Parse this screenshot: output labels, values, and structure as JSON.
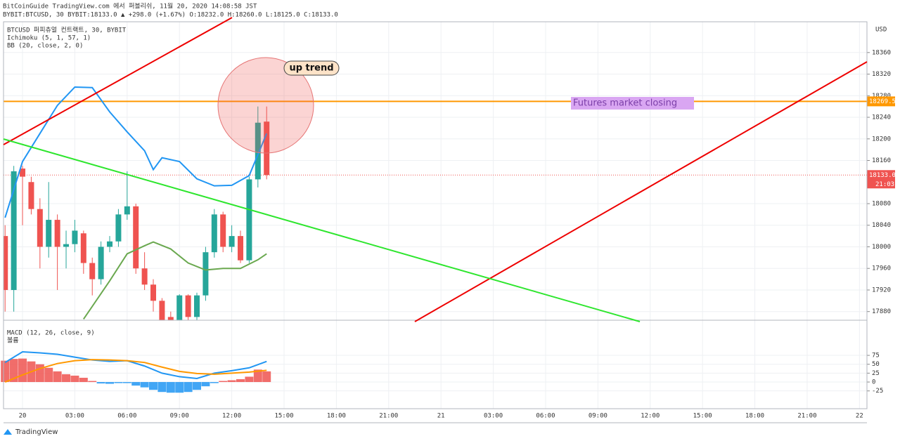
{
  "header": {
    "line1": "BitCoinGuide TradingView.com 에서 퍼블리쉬, 11월 20, 2020 14:08:58 JST",
    "line2": "BYBIT:BTCUSD, 30 BYBIT:18133.0 ▲ +298.0 (+1.67%) O:18232.0 H:18260.0 L:18125.0 C:18133.0"
  },
  "chart_data": [
    {
      "type": "candlestick",
      "legend": [
        "BTCUSD 퍼피츄얼 컨트랙트, 30, BYBIT",
        "Ichimoku (5, 1, 57, 1)",
        "BB (20, close, 2, 0)"
      ],
      "currency": "USD",
      "x": [
        -1,
        -0.5,
        0,
        0.5,
        1,
        1.5,
        2,
        2.5,
        3,
        3.5,
        4,
        4.5,
        5,
        5.5,
        6,
        6.5,
        7,
        7.5,
        8,
        8.5,
        9,
        9.5,
        10,
        10.5,
        11,
        11.5,
        12,
        12.5,
        13,
        13.5,
        14
      ],
      "open": [
        18020,
        17920,
        18145,
        18120,
        18070,
        18000,
        18050,
        18000,
        18005,
        18025,
        17970,
        17940,
        18000,
        18010,
        18060,
        18075,
        17960,
        17930,
        17900,
        17870,
        17860,
        17910,
        17870,
        17910,
        17990,
        18060,
        18000,
        18020,
        17975,
        18125,
        18232
      ],
      "high": [
        18040,
        18150,
        18150,
        18130,
        18090,
        18120,
        18060,
        18030,
        18050,
        18030,
        17980,
        18010,
        18020,
        18070,
        18140,
        18080,
        17990,
        17940,
        17905,
        17880,
        17912,
        17912,
        17915,
        18000,
        18070,
        18065,
        18040,
        18030,
        18130,
        18260,
        18260
      ],
      "low": [
        17880,
        17880,
        18040,
        18060,
        17960,
        17980,
        17920,
        17960,
        17990,
        17950,
        17910,
        17930,
        17990,
        18000,
        18050,
        17950,
        17920,
        17880,
        17850,
        17850,
        17850,
        17860,
        17860,
        17900,
        17980,
        17990,
        17990,
        17970,
        17970,
        18110,
        18125
      ],
      "close": [
        17920,
        18140,
        18130,
        18070,
        18000,
        18050,
        18000,
        18005,
        18030,
        17970,
        17940,
        18000,
        18010,
        18060,
        18075,
        17960,
        17930,
        17900,
        17860,
        17860,
        17910,
        17870,
        17910,
        17990,
        18060,
        18000,
        18020,
        17975,
        18125,
        18230,
        18133
      ],
      "up_color": "#26a69a",
      "down_color": "#ef5350",
      "lines": [
        {
          "color": "#2196f3",
          "x": [
            -1,
            0,
            1,
            2,
            3,
            4,
            5,
            6,
            7,
            7.5,
            8,
            9,
            10,
            11,
            12,
            13,
            14
          ],
          "values": [
            18054,
            18158,
            18210,
            18262,
            18296,
            18295,
            18250,
            18213,
            18178,
            18143,
            18165,
            18158,
            18126,
            18113,
            18114,
            18132,
            18210
          ]
        },
        {
          "color": "#6aa84f",
          "x": [
            3.5,
            5,
            6,
            7,
            7.5,
            8.5,
            9.5,
            10.5,
            11.5,
            12.5,
            13.5,
            14
          ],
          "values": [
            17866,
            17937,
            17987,
            18002,
            18009,
            17996,
            17970,
            17957,
            17960,
            17960,
            17976,
            17987
          ]
        }
      ],
      "hline": {
        "value": 18269.5,
        "color": "#ff9800"
      },
      "last_price": {
        "value": 18133,
        "label": "18133.0"
      },
      "countdown": "21:03",
      "annotations": {
        "callout": "up trend",
        "note": "Futures market closing"
      },
      "xlim": [
        -1.09,
        48.43
      ],
      "xticks": [
        {
          "value": 0,
          "label": "20"
        },
        {
          "value": 3,
          "label": "03:00"
        },
        {
          "value": 6,
          "label": "06:00"
        },
        {
          "value": 9,
          "label": "09:00"
        },
        {
          "value": 12,
          "label": "12:00"
        },
        {
          "value": 15,
          "label": "15:00"
        },
        {
          "value": 18,
          "label": "18:00"
        },
        {
          "value": 21,
          "label": "21:00"
        },
        {
          "value": 24,
          "label": "21"
        },
        {
          "value": 27,
          "label": "03:00"
        },
        {
          "value": 30,
          "label": "06:00"
        },
        {
          "value": 33,
          "label": "09:00"
        },
        {
          "value": 36,
          "label": "12:00"
        },
        {
          "value": 39,
          "label": "15:00"
        },
        {
          "value": 42,
          "label": "18:00"
        },
        {
          "value": 45,
          "label": "21:00"
        },
        {
          "value": 48,
          "label": "22"
        }
      ],
      "ylim": [
        17864,
        18417
      ],
      "yticks": [
        17880,
        17920,
        17960,
        18000,
        18040,
        18080,
        18160,
        18200,
        18240,
        18280,
        18320,
        18360
      ]
    },
    {
      "type": "macd",
      "legend": [
        "MACD (12, 26, close, 9)",
        "볼륨"
      ],
      "x": [
        -1,
        -0.5,
        0,
        0.5,
        1,
        1.5,
        2,
        2.5,
        3,
        3.5,
        4,
        4.5,
        5,
        5.5,
        6,
        6.5,
        7,
        7.5,
        8,
        8.5,
        9,
        9.5,
        10,
        10.5,
        11,
        11.5,
        12,
        12.5,
        13,
        13.5,
        14
      ],
      "histogram": [
        60,
        65,
        66,
        58,
        50,
        40,
        30,
        22,
        18,
        12,
        3,
        -4,
        -5,
        -3,
        -3,
        -10,
        -15,
        -22,
        -28,
        -30,
        -30,
        -28,
        -22,
        -12,
        -3,
        3,
        5,
        8,
        15,
        35,
        30
      ],
      "pos_color": "#ef5350",
      "neg_color": "#2196f3",
      "lines": [
        {
          "color": "#2196f3",
          "x": [
            -1,
            0,
            1,
            2,
            3,
            4,
            5,
            6,
            7,
            8,
            9,
            10,
            11,
            12,
            13,
            14
          ],
          "values": [
            55,
            85,
            82,
            78,
            70,
            62,
            58,
            60,
            45,
            25,
            15,
            10,
            25,
            32,
            40,
            58
          ]
        },
        {
          "color": "#ff9800",
          "x": [
            -1,
            0,
            1,
            2,
            3,
            4,
            5,
            6,
            7,
            8,
            9,
            10,
            11,
            12,
            13,
            14
          ],
          "values": [
            0,
            20,
            38,
            52,
            60,
            63,
            62,
            60,
            55,
            42,
            30,
            24,
            22,
            25,
            28,
            33
          ]
        }
      ],
      "ylim": [
        -75,
        162
      ],
      "yticks": [
        -25,
        0,
        25,
        50,
        75
      ]
    }
  ],
  "footer": {
    "brand": "TradingView"
  }
}
